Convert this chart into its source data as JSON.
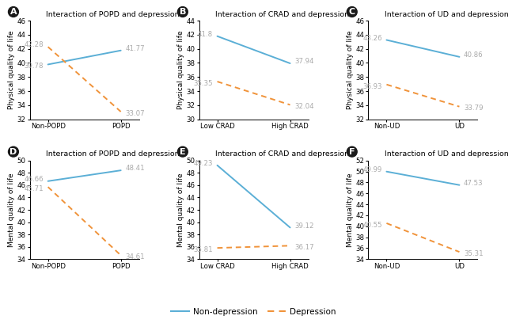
{
  "panels": [
    {
      "label": "A",
      "title": "Interaction of POPD and depression",
      "xlabel": [
        "Non-POPD",
        "POPD"
      ],
      "ylabel": "Physical quality of life",
      "ylim": [
        32,
        46
      ],
      "yticks": [
        32,
        34,
        36,
        38,
        40,
        42,
        44,
        46
      ],
      "nondep": [
        39.78,
        41.77
      ],
      "dep": [
        42.28,
        33.07
      ],
      "nd_ann": [
        [
          -0.08,
          0.3,
          "right"
        ],
        [
          1.08,
          0.0,
          "left"
        ]
      ],
      "dep_ann": [
        [
          -0.08,
          0.3,
          "right"
        ],
        [
          1.08,
          0.0,
          "left"
        ]
      ]
    },
    {
      "label": "B",
      "title": "Interaction of CRAD and depression",
      "xlabel": [
        "Low CRAD",
        "High CRAD"
      ],
      "ylabel": "Physical quality of life",
      "ylim": [
        30,
        44
      ],
      "yticks": [
        30,
        32,
        34,
        36,
        38,
        40,
        42,
        44
      ],
      "nondep": [
        41.8,
        37.94
      ],
      "dep": [
        35.35,
        32.04
      ],
      "nd_ann": [
        [
          -0.08,
          0.3,
          "right"
        ],
        [
          1.08,
          0.0,
          "left"
        ]
      ],
      "dep_ann": [
        [
          -0.08,
          0.3,
          "right"
        ],
        [
          1.08,
          0.0,
          "left"
        ]
      ]
    },
    {
      "label": "C",
      "title": "Interaction of UD and depression",
      "xlabel": [
        "Non-UD",
        "UD"
      ],
      "ylabel": "Physical quality of life",
      "ylim": [
        32,
        46
      ],
      "yticks": [
        32,
        34,
        36,
        38,
        40,
        42,
        44,
        46
      ],
      "nondep": [
        43.26,
        40.86
      ],
      "dep": [
        36.93,
        33.79
      ],
      "nd_ann": [
        [
          -0.08,
          0.3,
          "right"
        ],
        [
          1.08,
          0.0,
          "left"
        ]
      ],
      "dep_ann": [
        [
          -0.08,
          0.3,
          "right"
        ],
        [
          1.08,
          0.0,
          "left"
        ]
      ]
    },
    {
      "label": "D",
      "title": "Interaction of POPD and depression",
      "xlabel": [
        "Non-POPD",
        "POPD"
      ],
      "ylabel": "Mental quality of life",
      "ylim": [
        34,
        50
      ],
      "yticks": [
        34,
        36,
        38,
        40,
        42,
        44,
        46,
        48,
        50
      ],
      "nondep": [
        46.66,
        48.41
      ],
      "dep": [
        45.71,
        34.61
      ],
      "nd_ann": [
        [
          -0.08,
          0.3,
          "right"
        ],
        [
          1.08,
          0.0,
          "left"
        ]
      ],
      "dep_ann": [
        [
          -0.08,
          0.3,
          "right"
        ],
        [
          1.08,
          0.0,
          "left"
        ]
      ]
    },
    {
      "label": "E",
      "title": "Interaction of CRAD and depression",
      "xlabel": [
        "Low CRAD",
        "High CRAD"
      ],
      "ylabel": "Mental quality of life",
      "ylim": [
        34,
        50
      ],
      "yticks": [
        34,
        36,
        38,
        40,
        42,
        44,
        46,
        48,
        50
      ],
      "nondep": [
        49.23,
        39.12
      ],
      "dep": [
        35.81,
        36.17
      ],
      "nd_ann": [
        [
          -0.08,
          0.3,
          "right"
        ],
        [
          1.08,
          0.0,
          "left"
        ]
      ],
      "dep_ann": [
        [
          -0.08,
          0.3,
          "right"
        ],
        [
          1.08,
          0.0,
          "left"
        ]
      ]
    },
    {
      "label": "F",
      "title": "Interaction of UD and depression",
      "xlabel": [
        "Non-UD",
        "UD"
      ],
      "ylabel": "Mental quality of life",
      "ylim": [
        34,
        52
      ],
      "yticks": [
        34,
        36,
        38,
        40,
        42,
        44,
        46,
        48,
        50,
        52
      ],
      "nondep": [
        49.99,
        47.53
      ],
      "dep": [
        40.55,
        35.31
      ],
      "nd_ann": [
        [
          -0.08,
          0.3,
          "right"
        ],
        [
          1.08,
          0.0,
          "left"
        ]
      ],
      "dep_ann": [
        [
          -0.08,
          0.3,
          "right"
        ],
        [
          1.08,
          0.0,
          "left"
        ]
      ]
    }
  ],
  "color_nondep": "#5bafd6",
  "color_dep": "#f0933a",
  "title_fontsize": 6.8,
  "axis_label_fontsize": 6.5,
  "tick_fontsize": 6.2,
  "value_fontsize": 6.2,
  "legend_fontsize": 7.5,
  "ann_color": "#aaaaaa"
}
